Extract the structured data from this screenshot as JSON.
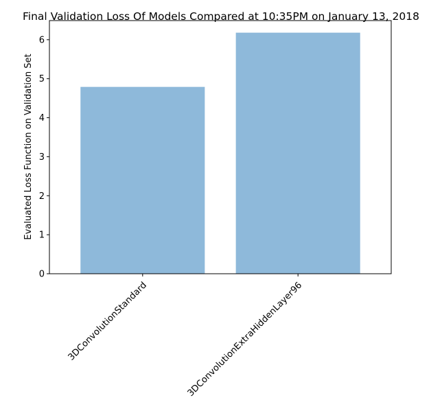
{
  "chart_data": {
    "type": "bar",
    "title": "Final Validation Loss Of Models Compared at 10:35PM on January 13, 2018",
    "xlabel": "",
    "ylabel": "Evaluated Loss Function on Validation Set",
    "categories": [
      "3DConvolutionStandard",
      "3DConvolutionExtraHiddenLayer96"
    ],
    "values": [
      4.79,
      6.18
    ],
    "ylim": [
      0,
      6.49
    ],
    "yticks": [
      0,
      1,
      2,
      3,
      4,
      5,
      6
    ],
    "grid": false,
    "legend": "none",
    "bar_color": "#8eb9da",
    "axis_color": "#000000"
  }
}
